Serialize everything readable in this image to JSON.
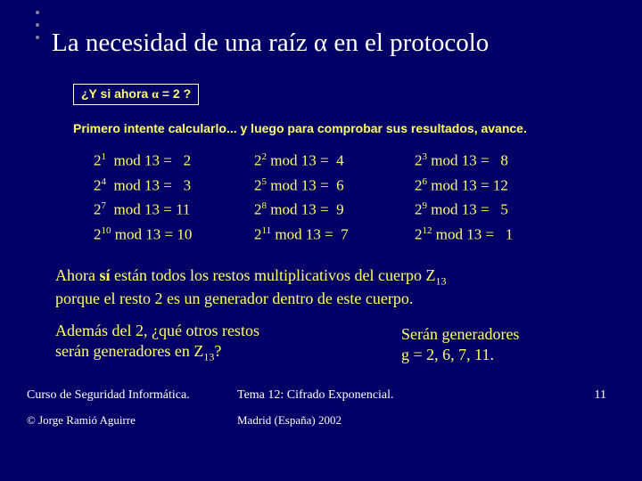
{
  "title_pre": "La necesidad de una raíz ",
  "title_alpha": "α",
  "title_post": " en el protocolo",
  "question_pre": "¿Y si ahora ",
  "question_alpha": "α",
  "question_post": " = 2 ?",
  "primero": "Primero intente calcularlo... y luego para comprobar sus resultados, avance.",
  "mod": {
    "r1c1_exp": "1",
    "r1c1_res": "2",
    "r1c2_exp": "2",
    "r1c2_res": "4",
    "r1c3_exp": "3",
    "r1c3_res": "8",
    "r2c1_exp": "4",
    "r2c1_res": "3",
    "r2c2_exp": "5",
    "r2c2_res": "6",
    "r2c3_exp": "6",
    "r2c3_res": "12",
    "r3c1_exp": "7",
    "r3c1_res": "11",
    "r3c2_exp": "8",
    "r3c2_res": "9",
    "r3c3_exp": "9",
    "r3c3_res": "5",
    "r4c1_exp": "10",
    "r4c1_res": "10",
    "r4c2_exp": "11",
    "r4c2_res": "7",
    "r4c3_exp": "12",
    "r4c3_res": "1"
  },
  "ahora_l1_pre": "Ahora ",
  "ahora_l1_si": "sí",
  "ahora_l1_post": " están todos los restos multiplicativos del cuerpo Z",
  "ahora_l1_sub": "13",
  "ahora_l2": "porque el resto 2 es un generador dentro de este cuerpo.",
  "ademas_l1": "Además del 2, ¿qué otros restos",
  "ademas_l2_pre": "serán generadores en Z",
  "ademas_l2_sub": "13",
  "ademas_l2_post": "?",
  "seran_l1": "Serán generadores",
  "seran_l2": "g = 2, 6, 7, 11.",
  "footer_course": "Curso de Seguridad Informática.",
  "footer_tema": "Tema 12:  Cifrado Exponencial.",
  "footer_author": "©  Jorge Ramió Aguirre",
  "footer_madrid": "Madrid (España) 2002",
  "pagenum": "11",
  "colors": {
    "background": "#020066",
    "accent_text": "#ffff66",
    "white": "#ffffff"
  }
}
